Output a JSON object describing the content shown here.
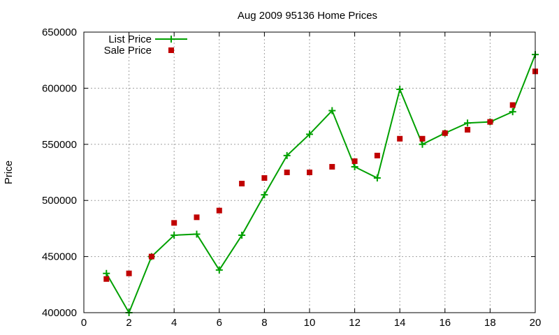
{
  "chart_data": {
    "type": "line",
    "title": "Aug 2009 95136 Home Prices",
    "xlabel": "",
    "ylabel": "Price",
    "xlim": [
      0,
      20
    ],
    "ylim": [
      400000,
      650000
    ],
    "x_ticks": [
      0,
      2,
      4,
      6,
      8,
      10,
      12,
      14,
      16,
      18,
      20
    ],
    "y_ticks": [
      400000,
      450000,
      500000,
      550000,
      600000,
      650000
    ],
    "grid": true,
    "legend_position": "top-left",
    "series": [
      {
        "name": "List Price",
        "style": "line-with-plus-markers",
        "color": "#00a000",
        "x": [
          1,
          2,
          3,
          4,
          5,
          6,
          7,
          8,
          9,
          10,
          11,
          12,
          13,
          14,
          15,
          16,
          17,
          18,
          19,
          20
        ],
        "values": [
          435000,
          400000,
          450000,
          469000,
          470000,
          438000,
          469000,
          505000,
          540000,
          559000,
          580000,
          530000,
          520000,
          599000,
          550000,
          560000,
          569000,
          570000,
          579000,
          630000
        ]
      },
      {
        "name": "Sale Price",
        "style": "square-markers",
        "color": "#c00000",
        "x": [
          1,
          2,
          3,
          4,
          5,
          6,
          7,
          8,
          9,
          10,
          11,
          12,
          13,
          14,
          15,
          16,
          17,
          18,
          19,
          20
        ],
        "values": [
          430000,
          435000,
          450000,
          480000,
          485000,
          491000,
          515000,
          520000,
          525000,
          525000,
          530000,
          535000,
          540000,
          555000,
          555000,
          560000,
          563000,
          570000,
          585000,
          615000
        ]
      }
    ]
  }
}
